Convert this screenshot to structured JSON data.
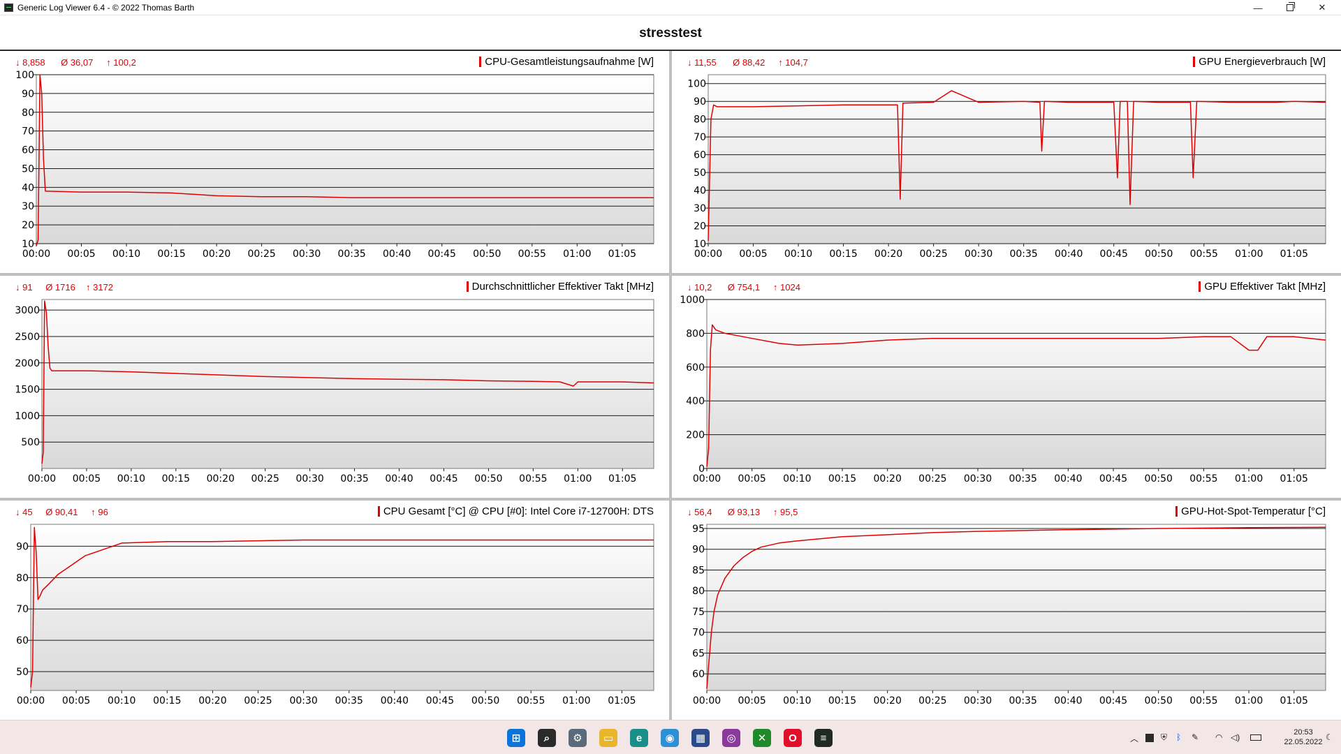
{
  "window": {
    "title": "Generic Log Viewer 6.4 - © 2022 Thomas Barth",
    "minimize": "—",
    "close": "✕"
  },
  "page_title": "stresstest",
  "chart_data": [
    {
      "id": "cpu-power",
      "type": "line",
      "title": "CPU-Gesamtleistungsaufnahme [W]",
      "stats": {
        "min": "↓ 8,858",
        "avg": "Ø 36,07",
        "max": "↑ 100,2"
      },
      "ylim": [
        10,
        100
      ],
      "yticks": [
        "10",
        "20",
        "30",
        "40",
        "50",
        "60",
        "70",
        "80",
        "90",
        "100"
      ],
      "xticks": [
        "00:00",
        "00:05",
        "00:10",
        "00:15",
        "00:20",
        "00:25",
        "00:30",
        "00:35",
        "00:40",
        "00:45",
        "00:50",
        "00:55",
        "01:00",
        "01:05"
      ],
      "grid": true,
      "series": [
        {
          "color": "#e00000",
          "x": [
            0,
            0.2,
            0.4,
            0.6,
            0.8,
            1,
            5,
            10,
            15,
            20,
            25,
            30,
            35,
            40,
            45,
            50,
            55,
            60,
            65,
            68.5
          ],
          "y": [
            8.9,
            12,
            100,
            90,
            55,
            38,
            37.5,
            37.5,
            37,
            35.5,
            35,
            35,
            34.5,
            34.5,
            34.5,
            34.5,
            34.5,
            34.5,
            34.5,
            34.5
          ]
        }
      ]
    },
    {
      "id": "gpu-power",
      "type": "line",
      "title": "GPU Energieverbrauch [W]",
      "stats": {
        "min": "↓ 11,55",
        "avg": "Ø 88,42",
        "max": "↑ 104,7"
      },
      "ylim": [
        10,
        105
      ],
      "yticks": [
        "10",
        "20",
        "30",
        "40",
        "50",
        "60",
        "70",
        "80",
        "90",
        "100"
      ],
      "xticks": [
        "00:00",
        "00:05",
        "00:10",
        "00:15",
        "00:20",
        "00:25",
        "00:30",
        "00:35",
        "00:40",
        "00:45",
        "00:50",
        "00:55",
        "01:00",
        "01:05"
      ],
      "grid": true,
      "series": [
        {
          "color": "#e00000",
          "x": [
            0,
            0.3,
            0.6,
            1,
            5,
            10,
            15,
            20,
            21,
            21.3,
            21.6,
            25,
            27,
            30,
            35,
            36.8,
            37,
            37.3,
            40,
            45,
            45.4,
            45.7,
            46.5,
            46.8,
            47.2,
            50,
            53.5,
            53.8,
            54.2,
            58,
            63,
            65,
            68.5
          ],
          "y": [
            11.6,
            80,
            88,
            87,
            87,
            87.5,
            88,
            88,
            88,
            35,
            89,
            89.5,
            96,
            89.5,
            90,
            89.5,
            62,
            90,
            89.5,
            89.5,
            47,
            90,
            90,
            32,
            90,
            89.5,
            89.5,
            47,
            90,
            89.5,
            89.5,
            90,
            89.5
          ]
        }
      ]
    },
    {
      "id": "cpu-clock",
      "type": "line",
      "title": "Durchschnittlicher Effektiver Takt [MHz]",
      "stats": {
        "min": "↓ 91",
        "avg": "Ø 1716",
        "max": "↑ 3172"
      },
      "ylim": [
        0,
        3200
      ],
      "yticks": [
        "500",
        "1000",
        "1500",
        "2000",
        "2500",
        "3000"
      ],
      "xticks": [
        "00:00",
        "00:05",
        "00:10",
        "00:15",
        "00:20",
        "00:25",
        "00:30",
        "00:35",
        "00:40",
        "00:45",
        "00:50",
        "00:55",
        "01:00",
        "01:05"
      ],
      "grid": true,
      "series": [
        {
          "color": "#e00000",
          "x": [
            0,
            0.15,
            0.3,
            0.5,
            0.7,
            0.9,
            1.1,
            5,
            10,
            15,
            20,
            25,
            30,
            35,
            40,
            45,
            50,
            55,
            58,
            59.5,
            60,
            65,
            68.5
          ],
          "y": [
            91,
            300,
            3172,
            2950,
            2300,
            1900,
            1850,
            1850,
            1830,
            1800,
            1770,
            1740,
            1720,
            1700,
            1690,
            1680,
            1660,
            1650,
            1640,
            1560,
            1640,
            1640,
            1620
          ]
        }
      ]
    },
    {
      "id": "gpu-clock",
      "type": "line",
      "title": "GPU Effektiver Takt [MHz]",
      "stats": {
        "min": "↓ 10,2",
        "avg": "Ø 754,1",
        "max": "↑ 1024"
      },
      "ylim": [
        0,
        1000
      ],
      "yticks": [
        "0",
        "200",
        "400",
        "600",
        "800",
        "1000"
      ],
      "xticks": [
        "00:00",
        "00:05",
        "00:10",
        "00:15",
        "00:20",
        "00:25",
        "00:30",
        "00:35",
        "00:40",
        "00:45",
        "00:50",
        "00:55",
        "01:00",
        "01:05"
      ],
      "grid": true,
      "series": [
        {
          "color": "#e00000",
          "x": [
            0,
            0.2,
            0.4,
            0.6,
            1,
            2,
            3,
            5,
            8,
            10,
            15,
            20,
            25,
            30,
            35,
            40,
            45,
            50,
            55,
            58,
            60,
            61,
            62,
            65,
            68.5
          ],
          "y": [
            10,
            120,
            700,
            850,
            820,
            800,
            790,
            770,
            740,
            730,
            740,
            760,
            770,
            770,
            770,
            770,
            770,
            770,
            780,
            780,
            700,
            700,
            780,
            780,
            760
          ]
        }
      ]
    },
    {
      "id": "cpu-temp",
      "type": "line",
      "title": "CPU Gesamt [°C] @ CPU [#0]: Intel Core i7-12700H: DTS",
      "stats": {
        "min": "↓ 45",
        "avg": "Ø 90,41",
        "max": "↑ 96"
      },
      "ylim": [
        44,
        97
      ],
      "yticks": [
        "50",
        "60",
        "70",
        "80",
        "90"
      ],
      "xticks": [
        "00:00",
        "00:05",
        "00:10",
        "00:15",
        "00:20",
        "00:25",
        "00:30",
        "00:35",
        "00:40",
        "00:45",
        "00:50",
        "00:55",
        "01:00",
        "01:05"
      ],
      "grid": true,
      "series": [
        {
          "color": "#e00000",
          "x": [
            0,
            0.2,
            0.4,
            0.6,
            0.8,
            1.0,
            1.3,
            2,
            3,
            4,
            5,
            6,
            7,
            8,
            9,
            10,
            15,
            20,
            30,
            40,
            50,
            60,
            68.5
          ],
          "y": [
            45,
            50,
            96,
            88,
            73,
            74,
            76,
            78,
            81,
            83,
            85,
            87,
            88,
            89,
            90,
            91,
            91.5,
            91.5,
            92,
            92,
            92,
            92,
            92
          ]
        }
      ]
    },
    {
      "id": "gpu-hotspot",
      "type": "line",
      "title": "GPU-Hot-Spot-Temperatur [°C]",
      "stats": {
        "min": "↓ 56,4",
        "avg": "Ø 93,13",
        "max": "↑ 95,5"
      },
      "ylim": [
        56,
        96
      ],
      "yticks": [
        "60",
        "65",
        "70",
        "75",
        "80",
        "85",
        "90",
        "95"
      ],
      "xticks": [
        "00:00",
        "00:05",
        "00:10",
        "00:15",
        "00:20",
        "00:25",
        "00:30",
        "00:35",
        "00:40",
        "00:45",
        "00:50",
        "00:55",
        "01:00",
        "01:05"
      ],
      "grid": true,
      "series": [
        {
          "color": "#e00000",
          "x": [
            0,
            0.2,
            0.5,
            0.8,
            1.2,
            2,
            3,
            4,
            5,
            6,
            8,
            10,
            15,
            20,
            25,
            30,
            40,
            50,
            60,
            68.5
          ],
          "y": [
            56.4,
            62,
            70,
            75,
            79,
            83,
            86,
            88,
            89.5,
            90.5,
            91.5,
            92,
            93,
            93.5,
            94,
            94.3,
            94.7,
            95,
            95.2,
            95.3
          ]
        }
      ]
    }
  ],
  "taskbar": {
    "apps": [
      {
        "name": "start-icon",
        "glyph": "⊞",
        "color": "#0a74da"
      },
      {
        "name": "search-icon",
        "glyph": "⌕",
        "color": "#2a2a2a"
      },
      {
        "name": "settings-icon",
        "glyph": "⚙",
        "color": "#5a6a7a"
      },
      {
        "name": "file-explorer-icon",
        "glyph": "▭",
        "color": "#e8b62c"
      },
      {
        "name": "edge-icon",
        "glyph": "e",
        "color": "#1a8f8a"
      },
      {
        "name": "photos-icon",
        "glyph": "◉",
        "color": "#2f8fd6"
      },
      {
        "name": "calculator-icon",
        "glyph": "▦",
        "color": "#2a4a8a"
      },
      {
        "name": "camera-icon",
        "glyph": "◎",
        "color": "#8a3a9a"
      },
      {
        "name": "xbox-icon",
        "glyph": "✕",
        "color": "#1e8a2a"
      },
      {
        "name": "opera-icon",
        "glyph": "O",
        "color": "#e0102a"
      },
      {
        "name": "log-viewer-icon",
        "glyph": "≡",
        "color": "#1f2b22"
      }
    ],
    "clock_time": "20:53",
    "clock_date": "22.05.2022"
  }
}
